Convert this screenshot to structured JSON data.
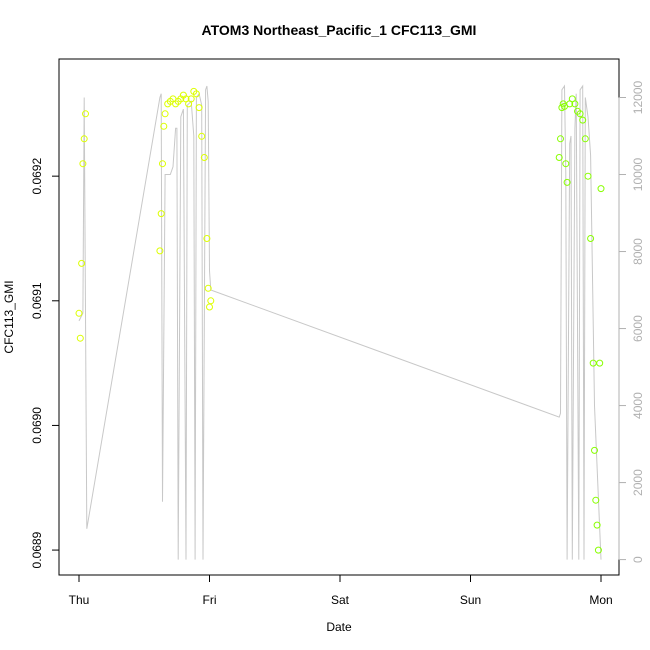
{
  "chart_data": {
    "type": "scatter",
    "title": "ATOM3 Northeast_Pacific_1 CFC113_GMI",
    "xlabel": "Date",
    "ylabel": "CFC113_GMI",
    "x_ticks": [
      "Thu",
      "Fri",
      "Sat",
      "Sun",
      "Mon"
    ],
    "x_range_days": [
      -0.05,
      4.1
    ],
    "y_ticks": [
      "0.0689",
      "0.0690",
      "0.0691",
      "0.0692"
    ],
    "y_range": [
      0.06888,
      0.069294
    ],
    "right_axis": {
      "label": "",
      "ticks": [
        "0",
        "2000",
        "4000",
        "6000",
        "8000",
        "10000",
        "12000"
      ],
      "range": [
        -400,
        13000
      ],
      "color": "#b0b0b0"
    },
    "colors": {
      "low_altitude": "#88ff00",
      "high_altitude": "#ddff00",
      "altitude_line": "#c8c8c8",
      "frame": "#000000"
    },
    "altitude_series": {
      "name": "",
      "x_days": [
        0.0,
        0.03,
        0.04,
        0.06,
        0.62,
        0.63,
        0.64,
        0.66,
        0.7,
        0.72,
        0.74,
        0.75,
        0.76,
        0.78,
        0.79,
        0.8,
        0.82,
        0.83,
        0.86,
        0.88,
        0.89,
        0.9,
        0.92,
        0.94,
        0.95,
        0.97,
        0.98,
        0.99,
        1.0,
        1.01,
        3.68,
        3.69,
        3.7,
        3.72,
        3.73,
        3.74,
        3.76,
        3.77,
        3.78,
        3.8,
        3.81,
        3.83,
        3.84,
        3.86,
        3.87,
        3.88,
        3.9,
        3.92,
        3.95,
        4.0
      ],
      "altitude_m": [
        6200,
        6400,
        12000,
        800,
        12000,
        12100,
        1500,
        10000,
        10000,
        10200,
        11200,
        11200,
        0,
        11500,
        11600,
        11700,
        0,
        11800,
        11900,
        11000,
        0,
        12000,
        12100,
        11800,
        0,
        12200,
        12300,
        11900,
        7500,
        7000,
        3700,
        3800,
        12200,
        12300,
        10000,
        0,
        10800,
        11000,
        0,
        11200,
        12100,
        0,
        12200,
        12300,
        0,
        12000,
        11500,
        10500,
        4000,
        0
      ]
    },
    "cfc_series": {
      "name": "",
      "x_days": [
        0.0,
        0.01,
        0.02,
        0.03,
        0.04,
        0.05,
        0.62,
        0.63,
        0.64,
        0.65,
        0.66,
        0.68,
        0.7,
        0.72,
        0.74,
        0.76,
        0.78,
        0.8,
        0.82,
        0.84,
        0.86,
        0.88,
        0.9,
        0.92,
        0.94,
        0.96,
        0.98,
        0.99,
        1.0,
        1.01,
        3.68,
        3.69,
        3.7,
        3.71,
        3.72,
        3.73,
        3.74,
        3.76,
        3.78,
        3.8,
        3.82,
        3.84,
        3.86,
        3.88,
        3.9,
        3.92,
        3.94,
        3.95,
        3.96,
        3.97,
        3.98,
        3.99,
        4.0
      ],
      "values": [
        0.06909,
        0.06907,
        0.06913,
        0.06921,
        0.06923,
        0.06925,
        0.06914,
        0.06917,
        0.06921,
        0.06924,
        0.06925,
        0.069258,
        0.06926,
        0.069262,
        0.069258,
        0.06926,
        0.069262,
        0.069265,
        0.069262,
        0.069258,
        0.069262,
        0.069268,
        0.069266,
        0.069255,
        0.069232,
        0.069215,
        0.06915,
        0.06911,
        0.069095,
        0.0691,
        0.069215,
        0.06923,
        0.069255,
        0.069258,
        0.069256,
        0.06921,
        0.069195,
        0.069258,
        0.069262,
        0.069258,
        0.069252,
        0.06925,
        0.069245,
        0.06923,
        0.0692,
        0.06915,
        0.06905,
        0.06898,
        0.06894,
        0.06892,
        0.0689,
        0.06905,
        0.06919
      ]
    }
  }
}
